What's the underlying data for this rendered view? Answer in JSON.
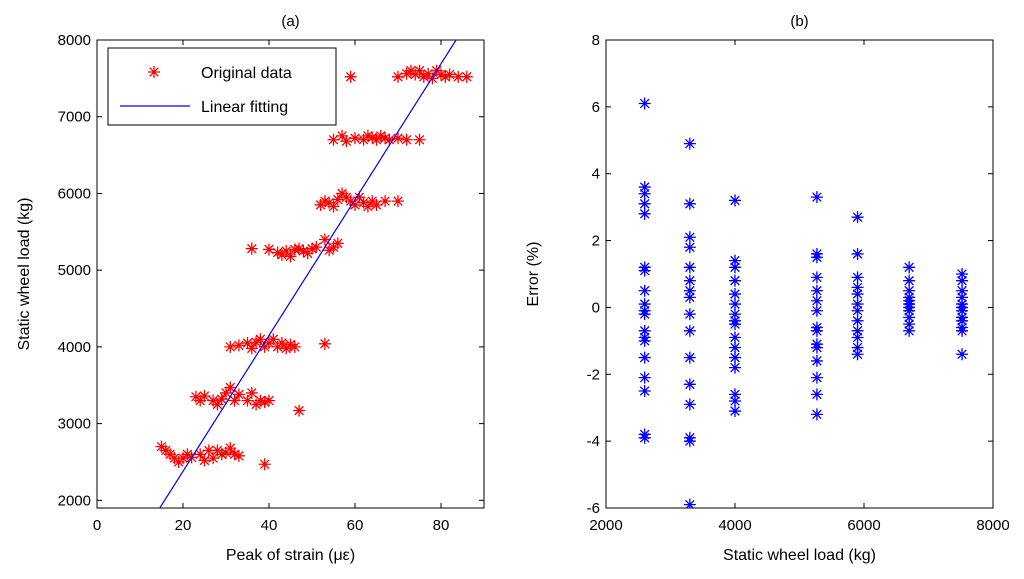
{
  "chart_data": [
    {
      "type": "scatter",
      "title": "(a)",
      "xlabel": "Peak of strain (με)",
      "ylabel": "Static wheel load (kg)",
      "xlim": [
        0,
        90
      ],
      "ylim": [
        1900,
        8000
      ],
      "xticks": [
        0,
        20,
        40,
        60,
        80
      ],
      "yticks": [
        2000,
        3000,
        4000,
        5000,
        6000,
        7000,
        8000
      ],
      "xtick_labels": [
        "0",
        "20",
        "40",
        "60",
        "80"
      ],
      "ytick_labels": [
        "2000",
        "3000",
        "4000",
        "5000",
        "6000",
        "7000",
        "8000"
      ],
      "legend": {
        "position": "top-left",
        "entries": [
          {
            "label": "Original data",
            "marker": "*",
            "color": "#ff0000"
          },
          {
            "label": "Linear fitting",
            "marker": "line",
            "color": "#0000ff"
          }
        ]
      },
      "series": [
        {
          "name": "Original data",
          "color": "#ff0000",
          "marker": "*",
          "points": [
            [
              15,
              2700
            ],
            [
              16,
              2650
            ],
            [
              17,
              2600
            ],
            [
              18,
              2550
            ],
            [
              19,
              2500
            ],
            [
              20,
              2550
            ],
            [
              21,
              2600
            ],
            [
              22,
              2560
            ],
            [
              24,
              2600
            ],
            [
              25,
              2520
            ],
            [
              26,
              2650
            ],
            [
              27,
              2550
            ],
            [
              28,
              2650
            ],
            [
              29,
              2600
            ],
            [
              30,
              2620
            ],
            [
              31,
              2680
            ],
            [
              32,
              2600
            ],
            [
              33,
              2580
            ],
            [
              39,
              2470
            ],
            [
              23,
              3350
            ],
            [
              24,
              3300
            ],
            [
              25,
              3360
            ],
            [
              27,
              3300
            ],
            [
              28,
              3250
            ],
            [
              29,
              3320
            ],
            [
              30,
              3400
            ],
            [
              31,
              3470
            ],
            [
              32,
              3300
            ],
            [
              33,
              3380
            ],
            [
              35,
              3300
            ],
            [
              36,
              3400
            ],
            [
              37,
              3250
            ],
            [
              38,
              3300
            ],
            [
              39,
              3280
            ],
            [
              40,
              3300
            ],
            [
              47,
              3170
            ],
            [
              31,
              4000
            ],
            [
              33,
              4020
            ],
            [
              35,
              4050
            ],
            [
              36,
              3980
            ],
            [
              37,
              4060
            ],
            [
              38,
              4100
            ],
            [
              39,
              4000
            ],
            [
              40,
              4050
            ],
            [
              41,
              4100
            ],
            [
              42,
              4000
            ],
            [
              43,
              4050
            ],
            [
              44,
              3980
            ],
            [
              45,
              4030
            ],
            [
              46,
              4000
            ],
            [
              53,
              4040
            ],
            [
              36,
              5280
            ],
            [
              40,
              5270
            ],
            [
              42,
              5230
            ],
            [
              43,
              5200
            ],
            [
              44,
              5250
            ],
            [
              45,
              5180
            ],
            [
              46,
              5270
            ],
            [
              47,
              5280
            ],
            [
              48,
              5250
            ],
            [
              49,
              5220
            ],
            [
              50,
              5280
            ],
            [
              51,
              5300
            ],
            [
              53,
              5400
            ],
            [
              54,
              5260
            ],
            [
              55,
              5300
            ],
            [
              56,
              5350
            ],
            [
              52,
              5850
            ],
            [
              53,
              5900
            ],
            [
              54,
              5880
            ],
            [
              55,
              5830
            ],
            [
              56,
              5920
            ],
            [
              57,
              6000
            ],
            [
              58,
              5950
            ],
            [
              59,
              5900
            ],
            [
              60,
              5850
            ],
            [
              61,
              5950
            ],
            [
              62,
              5880
            ],
            [
              63,
              5830
            ],
            [
              64,
              5900
            ],
            [
              65,
              5850
            ],
            [
              67,
              5900
            ],
            [
              70,
              5900
            ],
            [
              55,
              6700
            ],
            [
              57,
              6750
            ],
            [
              58,
              6680
            ],
            [
              60,
              6720
            ],
            [
              62,
              6700
            ],
            [
              63,
              6750
            ],
            [
              64,
              6730
            ],
            [
              65,
              6700
            ],
            [
              66,
              6750
            ],
            [
              67,
              6720
            ],
            [
              68,
              6700
            ],
            [
              70,
              6720
            ],
            [
              72,
              6700
            ],
            [
              75,
              6700
            ],
            [
              59,
              7520
            ],
            [
              70,
              7520
            ],
            [
              72,
              7560
            ],
            [
              73,
              7600
            ],
            [
              74,
              7550
            ],
            [
              75,
              7600
            ],
            [
              76,
              7520
            ],
            [
              77,
              7560
            ],
            [
              78,
              7500
            ],
            [
              79,
              7600
            ],
            [
              80,
              7550
            ],
            [
              81,
              7520
            ],
            [
              82,
              7550
            ],
            [
              84,
              7520
            ],
            [
              86,
              7520
            ]
          ]
        },
        {
          "name": "Linear fitting",
          "color": "#0000ff",
          "marker": "line",
          "points": [
            [
              14.6,
              1900
            ],
            [
              83.5,
              8000
            ]
          ]
        }
      ]
    },
    {
      "type": "scatter",
      "title": "(b)",
      "xlabel": "Static wheel load (kg)",
      "ylabel": "Error (%)",
      "xlim": [
        2000,
        8000
      ],
      "ylim": [
        -6,
        8
      ],
      "xticks": [
        2000,
        4000,
        6000,
        8000
      ],
      "yticks": [
        -6,
        -4,
        -2,
        0,
        2,
        4,
        6,
        8
      ],
      "xtick_labels": [
        "2000",
        "4000",
        "6000",
        "8000"
      ],
      "ytick_labels": [
        "-6",
        "-4",
        "-2",
        "0",
        "2",
        "4",
        "6",
        "8"
      ],
      "series": [
        {
          "name": "Error",
          "color": "#0000ff",
          "marker": "*",
          "points": [
            [
              2600,
              6.1
            ],
            [
              2600,
              3.6
            ],
            [
              2600,
              3.4
            ],
            [
              2600,
              3.1
            ],
            [
              2600,
              2.8
            ],
            [
              2600,
              1.2
            ],
            [
              2600,
              1.1
            ],
            [
              2600,
              0.5
            ],
            [
              2600,
              0.1
            ],
            [
              2600,
              -0.1
            ],
            [
              2600,
              -0.2
            ],
            [
              2600,
              -0.7
            ],
            [
              2600,
              -0.9
            ],
            [
              2600,
              -1.0
            ],
            [
              2600,
              -1.5
            ],
            [
              2600,
              -2.1
            ],
            [
              2600,
              -2.5
            ],
            [
              2600,
              -3.9
            ],
            [
              2600,
              -3.8
            ],
            [
              3300,
              4.9
            ],
            [
              3300,
              3.1
            ],
            [
              3300,
              2.1
            ],
            [
              3300,
              1.8
            ],
            [
              3300,
              1.2
            ],
            [
              3300,
              0.8
            ],
            [
              3300,
              0.5
            ],
            [
              3300,
              0.3
            ],
            [
              3300,
              -0.2
            ],
            [
              3300,
              -0.7
            ],
            [
              3300,
              -1.5
            ],
            [
              3300,
              -2.3
            ],
            [
              3300,
              -2.9
            ],
            [
              3300,
              -3.9
            ],
            [
              3300,
              -4.0
            ],
            [
              3300,
              -5.9
            ],
            [
              4000,
              3.2
            ],
            [
              4000,
              1.4
            ],
            [
              4000,
              1.2
            ],
            [
              4000,
              0.8
            ],
            [
              4000,
              0.4
            ],
            [
              4000,
              0.1
            ],
            [
              4000,
              -0.2
            ],
            [
              4000,
              -0.4
            ],
            [
              4000,
              -0.5
            ],
            [
              4000,
              -0.9
            ],
            [
              4000,
              -1.2
            ],
            [
              4000,
              -1.5
            ],
            [
              4000,
              -1.8
            ],
            [
              4000,
              -2.6
            ],
            [
              4000,
              -2.8
            ],
            [
              4000,
              -3.1
            ],
            [
              5270,
              3.3
            ],
            [
              5270,
              1.6
            ],
            [
              5270,
              1.5
            ],
            [
              5270,
              0.9
            ],
            [
              5270,
              0.5
            ],
            [
              5270,
              0.2
            ],
            [
              5270,
              -0.1
            ],
            [
              5270,
              -0.6
            ],
            [
              5270,
              -0.7
            ],
            [
              5270,
              -1.1
            ],
            [
              5270,
              -1.2
            ],
            [
              5270,
              -1.6
            ],
            [
              5270,
              -2.1
            ],
            [
              5270,
              -2.6
            ],
            [
              5270,
              -3.2
            ],
            [
              5900,
              2.7
            ],
            [
              5900,
              1.6
            ],
            [
              5900,
              0.9
            ],
            [
              5900,
              0.6
            ],
            [
              5900,
              0.4
            ],
            [
              5900,
              0.1
            ],
            [
              5900,
              -0.1
            ],
            [
              5900,
              -0.4
            ],
            [
              5900,
              -0.7
            ],
            [
              5900,
              -0.9
            ],
            [
              5900,
              -1.2
            ],
            [
              5900,
              -1.4
            ],
            [
              6700,
              1.2
            ],
            [
              6700,
              0.8
            ],
            [
              6700,
              0.5
            ],
            [
              6700,
              0.3
            ],
            [
              6700,
              0.2
            ],
            [
              6700,
              0.1
            ],
            [
              6700,
              0.0
            ],
            [
              6700,
              -0.1
            ],
            [
              6700,
              -0.3
            ],
            [
              6700,
              -0.5
            ],
            [
              6700,
              -0.7
            ],
            [
              7520,
              1.0
            ],
            [
              7520,
              0.8
            ],
            [
              7520,
              0.5
            ],
            [
              7520,
              0.3
            ],
            [
              7520,
              0.1
            ],
            [
              7520,
              0.0
            ],
            [
              7520,
              -0.1
            ],
            [
              7520,
              -0.3
            ],
            [
              7520,
              -0.4
            ],
            [
              7520,
              -0.6
            ],
            [
              7520,
              -0.7
            ],
            [
              7520,
              -1.4
            ]
          ]
        }
      ]
    }
  ]
}
